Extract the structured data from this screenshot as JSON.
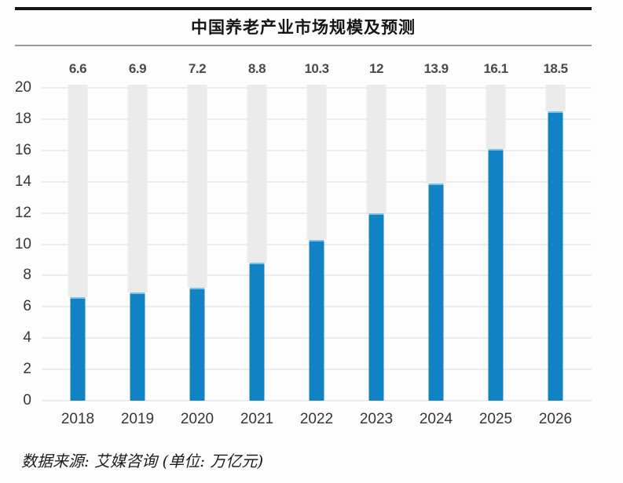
{
  "header": {
    "title": "中国养老产业市场规模及预测"
  },
  "footer": {
    "source_note": "数据来源: 艾媒咨询 (单位: 万亿元)"
  },
  "colors": {
    "bar": "#1182c4",
    "bar_cap": "#7fc2e4",
    "track": "#ebebeb",
    "gridline": "#ececec",
    "rule_thick": "#141414",
    "rule_thin": "#9a9a9a"
  },
  "chart_data": {
    "type": "bar",
    "categories": [
      "2018",
      "2019",
      "2020",
      "2021",
      "2022",
      "2023",
      "2024",
      "2025",
      "2026"
    ],
    "values": [
      6.6,
      6.9,
      7.2,
      8.8,
      10.3,
      12,
      13.9,
      16.1,
      18.5
    ],
    "value_labels": [
      "6.6",
      "6.9",
      "7.2",
      "8.8",
      "10.3",
      "12",
      "13.9",
      "16.1",
      "18.5"
    ],
    "title": "中国养老产业市场规模及预测",
    "xlabel": "",
    "ylabel": "",
    "unit": "万亿元",
    "ylim": [
      0,
      20
    ],
    "ytick_step": 2,
    "grid": true,
    "legend": false,
    "background_track_to_max": true,
    "source": "数据来源: 艾媒咨询 (单位: 万亿元)"
  }
}
